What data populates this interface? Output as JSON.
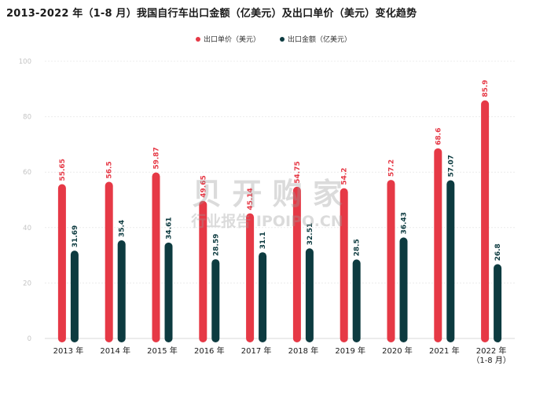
{
  "chart_data": {
    "type": "bar",
    "title": "2013-2022 年（1-8 月）我国自行车出口金额（亿美元）及出口单价（美元）变化趋势",
    "categories": [
      "2013 年",
      "2014 年",
      "2015 年",
      "2016 年",
      "2017 年",
      "2018 年",
      "2019 年",
      "2020 年",
      "2021 年",
      "2022 年|（1-8 月）"
    ],
    "series": [
      {
        "name": "出口单价（美元）",
        "color": "#e63946",
        "values": [
          55.65,
          56.5,
          59.87,
          49.65,
          45.14,
          54.75,
          54.2,
          57.2,
          68.6,
          85.9
        ],
        "labels": [
          "55.65",
          "56.5",
          "59.87",
          "49.65",
          "45.14",
          "54.75",
          "54.2",
          "57.2",
          "68.6",
          "85.9"
        ]
      },
      {
        "name": "出口金额（亿美元）",
        "color": "#0d3b40",
        "values": [
          31.69,
          35.4,
          34.61,
          28.59,
          31.1,
          32.51,
          28.5,
          36.43,
          57.07,
          26.8
        ],
        "labels": [
          "31.69",
          "35.4",
          "34.61",
          "28.59",
          "31.1",
          "32.51",
          "28.5",
          "36.43",
          "57.07",
          "26.8"
        ]
      }
    ],
    "ylim": [
      0,
      100
    ],
    "yticks": [
      0,
      20,
      40,
      60,
      80,
      100
    ],
    "grid": true,
    "legend": "top-center"
  },
  "watermark": {
    "line1": "贝 开 购 家",
    "line2": "行业报告 IPOIPO.CN"
  }
}
